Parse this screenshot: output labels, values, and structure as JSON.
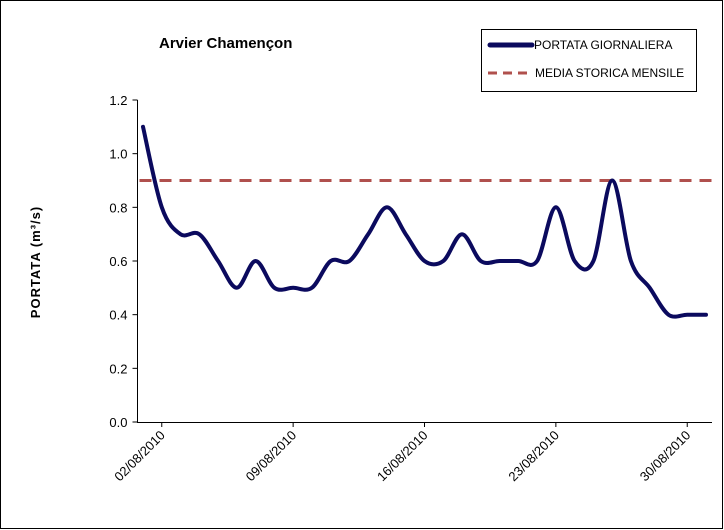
{
  "chart_data": {
    "type": "line",
    "title": "Arvier  Chamençon",
    "ylabel": "PORTATA (m³/s)",
    "xlabel": "",
    "ylim": [
      0,
      1.2
    ],
    "yticks": [
      "0.0",
      "0.2",
      "0.4",
      "0.6",
      "0.8",
      "1.0",
      "1.2"
    ],
    "xlim": [
      "2010-08-01",
      "2010-08-31"
    ],
    "xticks": [
      "02/08/2010",
      "09/08/2010",
      "16/08/2010",
      "23/08/2010",
      "30/08/2010"
    ],
    "xtick_dates": [
      "2010-08-02",
      "2010-08-09",
      "2010-08-16",
      "2010-08-23",
      "2010-08-30"
    ],
    "legend_position": "top-right",
    "grid": false,
    "colors": {
      "daily": "#0b0a5e",
      "mean": "#b0504d"
    },
    "series": [
      {
        "name": "PORTATA GIORNALIERA",
        "style": "solid",
        "x": [
          "2010-08-01",
          "2010-08-02",
          "2010-08-03",
          "2010-08-04",
          "2010-08-05",
          "2010-08-06",
          "2010-08-07",
          "2010-08-08",
          "2010-08-09",
          "2010-08-10",
          "2010-08-11",
          "2010-08-12",
          "2010-08-13",
          "2010-08-14",
          "2010-08-15",
          "2010-08-16",
          "2010-08-17",
          "2010-08-18",
          "2010-08-19",
          "2010-08-20",
          "2010-08-21",
          "2010-08-22",
          "2010-08-23",
          "2010-08-24",
          "2010-08-25",
          "2010-08-26",
          "2010-08-27",
          "2010-08-28",
          "2010-08-29",
          "2010-08-30",
          "2010-08-31"
        ],
        "values": [
          1.1,
          0.8,
          0.7,
          0.7,
          0.6,
          0.5,
          0.6,
          0.5,
          0.5,
          0.5,
          0.6,
          0.6,
          0.7,
          0.8,
          0.7,
          0.6,
          0.6,
          0.7,
          0.6,
          0.6,
          0.6,
          0.6,
          0.8,
          0.6,
          0.6,
          0.9,
          0.6,
          0.5,
          0.4,
          0.4,
          0.4
        ]
      },
      {
        "name": "MEDIA STORICA MENSILE",
        "style": "dashed",
        "x": [
          "2010-08-01",
          "2010-08-31"
        ],
        "values": [
          0.9,
          0.9
        ]
      }
    ]
  }
}
